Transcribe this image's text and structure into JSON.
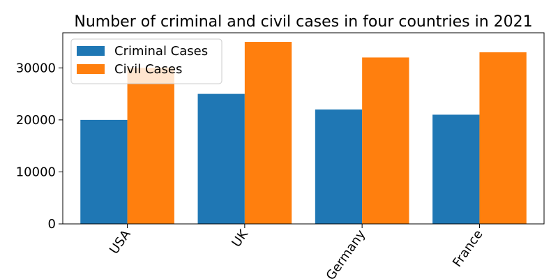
{
  "chart_data": {
    "type": "bar",
    "title": "Number of criminal and civil cases in four countries in 2021",
    "xlabel": "",
    "ylabel": "",
    "categories": [
      "USA",
      "UK",
      "Germany",
      "France"
    ],
    "series": [
      {
        "name": "Criminal Cases",
        "color": "#1f77b4",
        "values": [
          20000,
          25000,
          22000,
          21000
        ]
      },
      {
        "name": "Civil Cases",
        "color": "#ff7f0e",
        "values": [
          30000,
          35000,
          32000,
          33000
        ]
      }
    ],
    "ylim": [
      0,
      36750
    ],
    "yticks": [
      0,
      10000,
      20000,
      30000
    ],
    "ytick_labels": [
      "0",
      "10000",
      "20000",
      "30000"
    ],
    "legend_position": "top-left",
    "grid": false
  }
}
